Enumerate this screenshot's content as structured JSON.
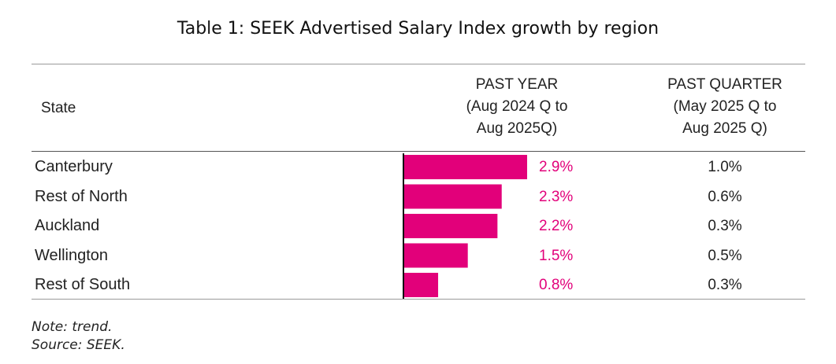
{
  "chart_data": {
    "type": "table",
    "title": "Table 1: SEEK Advertised Salary Index growth by region",
    "columns": {
      "state": "State",
      "past_year": [
        "PAST YEAR",
        "(Aug 2024 Q to",
        "Aug 2025Q)"
      ],
      "past_quarter": [
        "PAST QUARTER",
        "(May 2025 Q to",
        "Aug 2025 Q)"
      ]
    },
    "rows": [
      {
        "state": "Canterbury",
        "past_year": 2.9,
        "past_year_label": "2.9%",
        "past_quarter_label": "1.0%"
      },
      {
        "state": "Rest of North",
        "past_year": 2.3,
        "past_year_label": "2.3%",
        "past_quarter_label": "0.6%"
      },
      {
        "state": "Auckland",
        "past_year": 2.2,
        "past_year_label": "2.2%",
        "past_quarter_label": "0.3%"
      },
      {
        "state": "Wellington",
        "past_year": 1.5,
        "past_year_label": "1.5%",
        "past_quarter_label": "0.5%"
      },
      {
        "state": "Rest of South",
        "past_year": 0.8,
        "past_year_label": "0.8%",
        "past_quarter_label": "0.3%"
      }
    ],
    "bar_max": 2.9,
    "bar_color": "#e2007a"
  },
  "notes": {
    "note": "Note: trend.",
    "source": "Source: SEEK."
  }
}
